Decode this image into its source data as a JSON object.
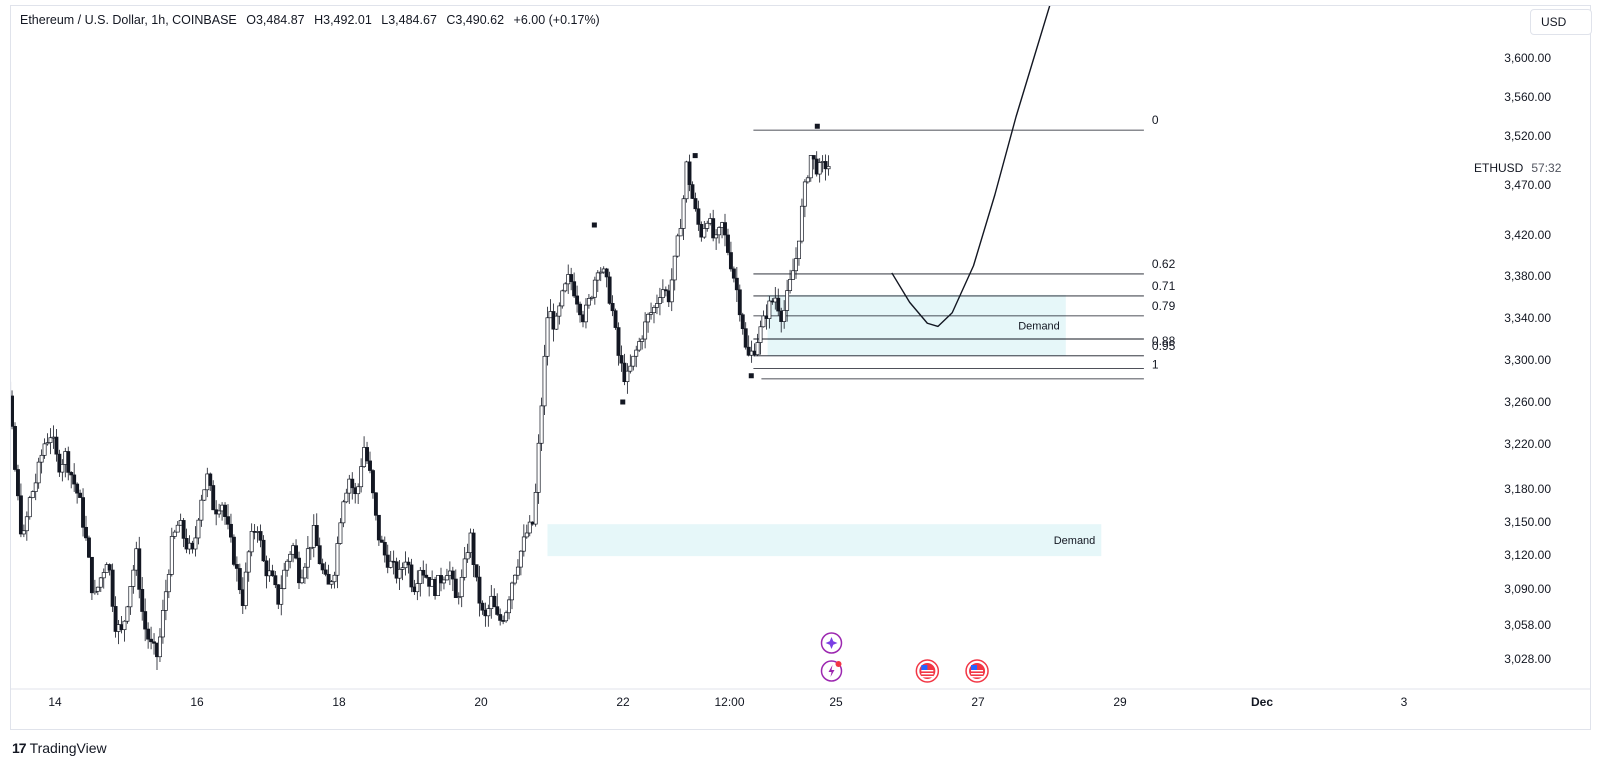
{
  "header": {
    "title": "Ethereum / U.S. Dollar, 1h, COINBASE",
    "open": "O3,484.87",
    "high": "H3,492.01",
    "low": "L3,484.67",
    "close": "C3,490.62",
    "change": "+6.00 (+0.17%)"
  },
  "currency_button": "USD",
  "symbol_tag": {
    "symbol": "ETHUSD",
    "countdown": "57:32"
  },
  "brand": {
    "logo": "17",
    "name": "TradingView"
  },
  "colors": {
    "candle": "#131722",
    "zone_fill": "#e6f7f9",
    "axis_text": "#131722",
    "event_purple": "#9c27b0",
    "event_red": "#f23645"
  },
  "chart_data": {
    "type": "candlestick",
    "symbol": "ETHUSD",
    "timeframe": "1h",
    "y_tick_labels": [
      "3,600.00",
      "3,560.00",
      "3,520.00",
      "3,470.00",
      "3,420.00",
      "3,380.00",
      "3,340.00",
      "3,300.00",
      "3,260.00",
      "3,220.00",
      "3,180.00",
      "3,150.00",
      "3,120.00",
      "3,090.00",
      "3,058.00",
      "3,028.00"
    ],
    "ylim": [
      3005,
      3625
    ],
    "x_tick_labels": [
      {
        "label": "14",
        "day": 14.0
      },
      {
        "label": "16",
        "day": 16.0
      },
      {
        "label": "18",
        "day": 18.0
      },
      {
        "label": "20",
        "day": 20.0
      },
      {
        "label": "22",
        "day": 22.0
      },
      {
        "label": "12:00",
        "day": 23.5
      },
      {
        "label": "25",
        "day": 25.0
      },
      {
        "label": "27",
        "day": 27.0
      },
      {
        "label": "29",
        "day": 29.0
      },
      {
        "label": "Dec",
        "day": 31.0
      },
      {
        "label": "3",
        "day": 33.0
      }
    ],
    "xlim": [
      13.5,
      35.5
    ],
    "price_path": [
      [
        13.5,
        3160
      ],
      [
        13.6,
        3175
      ],
      [
        13.7,
        3250
      ],
      [
        13.75,
        3330
      ],
      [
        13.85,
        3310
      ],
      [
        13.95,
        3270
      ],
      [
        14.05,
        3190
      ],
      [
        14.15,
        3130
      ],
      [
        14.25,
        3170
      ],
      [
        14.35,
        3190
      ],
      [
        14.45,
        3220
      ],
      [
        14.55,
        3230
      ],
      [
        14.65,
        3200
      ],
      [
        14.75,
        3210
      ],
      [
        14.85,
        3190
      ],
      [
        14.95,
        3170
      ],
      [
        15.05,
        3130
      ],
      [
        15.15,
        3080
      ],
      [
        15.25,
        3100
      ],
      [
        15.35,
        3120
      ],
      [
        15.45,
        3060
      ],
      [
        15.55,
        3050
      ],
      [
        15.65,
        3090
      ],
      [
        15.75,
        3120
      ],
      [
        15.85,
        3060
      ],
      [
        15.95,
        3040
      ],
      [
        16.05,
        3030
      ],
      [
        16.15,
        3080
      ],
      [
        16.25,
        3130
      ],
      [
        16.35,
        3150
      ],
      [
        16.45,
        3130
      ],
      [
        16.55,
        3120
      ],
      [
        16.65,
        3170
      ],
      [
        16.75,
        3190
      ],
      [
        16.85,
        3160
      ],
      [
        16.95,
        3170
      ],
      [
        17.05,
        3140
      ],
      [
        17.15,
        3110
      ],
      [
        17.25,
        3080
      ],
      [
        17.35,
        3130
      ],
      [
        17.45,
        3150
      ],
      [
        17.55,
        3110
      ],
      [
        17.65,
        3100
      ],
      [
        17.75,
        3080
      ],
      [
        17.85,
        3110
      ],
      [
        17.95,
        3130
      ],
      [
        18.05,
        3100
      ],
      [
        18.15,
        3120
      ],
      [
        18.25,
        3140
      ],
      [
        18.35,
        3110
      ],
      [
        18.45,
        3090
      ],
      [
        18.55,
        3110
      ],
      [
        18.65,
        3170
      ],
      [
        18.75,
        3190
      ],
      [
        18.85,
        3170
      ],
      [
        18.95,
        3220
      ],
      [
        19.05,
        3190
      ],
      [
        19.15,
        3140
      ],
      [
        19.25,
        3120
      ],
      [
        19.35,
        3110
      ],
      [
        19.45,
        3100
      ],
      [
        19.55,
        3120
      ],
      [
        19.65,
        3090
      ],
      [
        19.75,
        3110
      ],
      [
        19.85,
        3100
      ],
      [
        19.95,
        3090
      ],
      [
        20.05,
        3100
      ],
      [
        20.15,
        3110
      ],
      [
        20.25,
        3080
      ],
      [
        20.35,
        3100
      ],
      [
        20.45,
        3140
      ],
      [
        20.55,
        3090
      ],
      [
        20.65,
        3060
      ],
      [
        20.75,
        3080
      ],
      [
        20.85,
        3060
      ],
      [
        20.95,
        3070
      ],
      [
        21.05,
        3100
      ],
      [
        21.15,
        3120
      ],
      [
        21.25,
        3140
      ],
      [
        21.35,
        3150
      ],
      [
        21.45,
        3250
      ],
      [
        21.55,
        3350
      ],
      [
        21.65,
        3330
      ],
      [
        21.75,
        3360
      ],
      [
        21.85,
        3380
      ],
      [
        21.95,
        3360
      ],
      [
        22.05,
        3340
      ],
      [
        22.15,
        3360
      ],
      [
        22.25,
        3390
      ],
      [
        22.35,
        3380
      ],
      [
        22.45,
        3350
      ],
      [
        22.55,
        3300
      ],
      [
        22.65,
        3280
      ],
      [
        22.75,
        3300
      ],
      [
        22.85,
        3320
      ],
      [
        22.95,
        3340
      ],
      [
        23.05,
        3350
      ],
      [
        23.15,
        3370
      ],
      [
        23.25,
        3360
      ],
      [
        23.35,
        3400
      ],
      [
        23.45,
        3450
      ],
      [
        23.5,
        3490
      ],
      [
        23.6,
        3450
      ],
      [
        23.7,
        3420
      ],
      [
        23.8,
        3440
      ],
      [
        23.9,
        3410
      ],
      [
        24.0,
        3430
      ],
      [
        24.1,
        3400
      ],
      [
        24.2,
        3370
      ],
      [
        24.3,
        3330
      ],
      [
        24.35,
        3300
      ],
      [
        24.45,
        3310
      ],
      [
        24.55,
        3330
      ],
      [
        24.65,
        3350
      ],
      [
        24.75,
        3360
      ],
      [
        24.85,
        3340
      ],
      [
        24.95,
        3370
      ],
      [
        25.05,
        3400
      ],
      [
        25.15,
        3460
      ],
      [
        25.25,
        3500
      ],
      [
        25.35,
        3485
      ],
      [
        25.45,
        3490
      ]
    ],
    "marked_points": [
      {
        "day": 25.3,
        "price": 3530
      },
      {
        "day": 23.58,
        "price": 3500
      },
      {
        "day": 22.16,
        "price": 3430
      },
      {
        "day": 24.37,
        "price": 3285
      },
      {
        "day": 22.56,
        "price": 3260
      }
    ],
    "fib_levels": [
      {
        "label": "0",
        "price": 3526
      },
      {
        "label": "0.62",
        "price": 3382
      },
      {
        "label": "0.71",
        "price": 3361
      },
      {
        "label": "0.79",
        "price": 3342
      },
      {
        "label": "0.88",
        "price": 3320
      },
      {
        "label": "0.95",
        "price": 3304
      },
      {
        "label": "1",
        "price": 3292
      }
    ],
    "fib_range_days": [
      24.4,
      29.9
    ],
    "zones": [
      {
        "label": "Demand",
        "from_day": 24.6,
        "to_day": 28.8,
        "top": 3362,
        "bottom": 3304
      },
      {
        "label": "Demand",
        "from_day": 21.5,
        "to_day": 29.3,
        "top": 3148,
        "bottom": 3119
      }
    ],
    "projection_path": [
      [
        26.35,
        3383
      ],
      [
        26.6,
        3355
      ],
      [
        26.85,
        3335
      ],
      [
        27.0,
        3332
      ],
      [
        27.2,
        3345
      ],
      [
        27.5,
        3390
      ],
      [
        27.8,
        3460
      ],
      [
        28.1,
        3540
      ],
      [
        28.35,
        3600
      ],
      [
        28.6,
        3660
      ]
    ],
    "events": [
      {
        "icon": "sparkle-event-icon",
        "day": 25.5,
        "row": 1
      },
      {
        "icon": "lightning-event-icon",
        "day": 25.5,
        "row": 2
      },
      {
        "icon": "us-flag-event-icon",
        "day": 26.85,
        "row": 2
      },
      {
        "icon": "us-flag-event-icon",
        "day": 27.55,
        "row": 2
      }
    ],
    "grid": false,
    "legend": "none"
  }
}
